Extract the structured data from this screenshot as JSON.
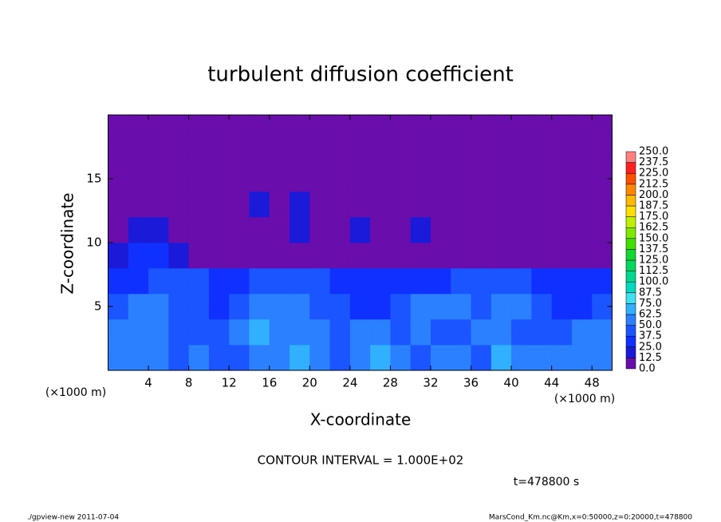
{
  "chart_data": {
    "type": "heatmap",
    "title": "turbulent diffusion coefficient",
    "xlabel": "X-coordinate",
    "ylabel": "Z-coordinate",
    "x_unit_label": "(×1000 m)",
    "y_unit_label": "(×1000 m)",
    "xlim": [
      0,
      50
    ],
    "ylim": [
      0,
      20
    ],
    "xticks": [
      4,
      8,
      12,
      16,
      20,
      24,
      28,
      32,
      36,
      40,
      44,
      48
    ],
    "yticks": [
      5,
      10,
      15
    ],
    "x": [
      1,
      3,
      5,
      7,
      9,
      11,
      13,
      15,
      17,
      19,
      21,
      23,
      25,
      27,
      29,
      31,
      33,
      35,
      37,
      39,
      41,
      43,
      45,
      47,
      49
    ],
    "z": [
      1,
      3,
      5,
      7,
      9,
      11,
      13,
      15,
      17,
      19
    ],
    "values": [
      [
        60,
        55,
        50,
        45,
        50,
        40,
        45,
        60,
        55,
        65,
        60,
        45,
        60,
        70,
        55,
        45,
        55,
        60,
        45,
        70,
        60,
        55,
        50,
        55,
        60
      ],
      [
        55,
        60,
        50,
        45,
        40,
        45,
        50,
        70,
        55,
        60,
        50,
        40,
        50,
        55,
        45,
        50,
        45,
        40,
        60,
        55,
        45,
        40,
        40,
        50,
        55
      ],
      [
        45,
        50,
        55,
        45,
        40,
        35,
        40,
        50,
        60,
        50,
        45,
        40,
        35,
        30,
        40,
        55,
        60,
        50,
        45,
        55,
        60,
        40,
        35,
        35,
        40
      ],
      [
        30,
        35,
        40,
        40,
        40,
        30,
        35,
        40,
        45,
        40,
        40,
        35,
        35,
        30,
        30,
        35,
        35,
        40,
        40,
        45,
        40,
        30,
        25,
        25,
        30
      ],
      [
        15,
        25,
        30,
        15,
        10,
        10,
        5,
        5,
        5,
        10,
        5,
        5,
        5,
        5,
        5,
        5,
        5,
        5,
        5,
        5,
        5,
        5,
        5,
        5,
        10
      ],
      [
        5,
        15,
        20,
        5,
        5,
        5,
        5,
        5,
        5,
        20,
        5,
        5,
        15,
        5,
        5,
        20,
        5,
        5,
        5,
        5,
        5,
        5,
        5,
        5,
        5
      ],
      [
        5,
        5,
        5,
        5,
        5,
        5,
        5,
        15,
        5,
        15,
        5,
        5,
        5,
        5,
        5,
        5,
        5,
        5,
        5,
        5,
        5,
        5,
        5,
        5,
        5
      ],
      [
        5,
        5,
        5,
        5,
        5,
        5,
        5,
        5,
        5,
        5,
        5,
        5,
        5,
        5,
        5,
        5,
        5,
        5,
        5,
        5,
        5,
        5,
        5,
        5,
        5
      ],
      [
        5,
        5,
        5,
        5,
        5,
        5,
        5,
        5,
        5,
        5,
        5,
        5,
        5,
        5,
        5,
        5,
        5,
        5,
        5,
        5,
        5,
        5,
        5,
        5,
        5
      ],
      [
        5,
        5,
        5,
        5,
        5,
        5,
        5,
        5,
        5,
        5,
        5,
        5,
        5,
        5,
        5,
        5,
        5,
        5,
        5,
        5,
        5,
        5,
        5,
        5,
        5
      ]
    ],
    "levels": [
      {
        "value": 0,
        "label": "0.0"
      },
      {
        "value": 12.5,
        "label": "12.5"
      },
      {
        "value": 25,
        "label": "25.0"
      },
      {
        "value": 37.5,
        "label": "37.5"
      },
      {
        "value": 50,
        "label": "50.0"
      },
      {
        "value": 62.5,
        "label": "62.5"
      },
      {
        "value": 75,
        "label": "75.0"
      },
      {
        "value": 87.5,
        "label": "87.5"
      },
      {
        "value": 100,
        "label": "100.0"
      },
      {
        "value": 112.5,
        "label": "112.5"
      },
      {
        "value": 125,
        "label": "125.0"
      },
      {
        "value": 137.5,
        "label": "137.5"
      },
      {
        "value": 150,
        "label": "150.0"
      },
      {
        "value": 162.5,
        "label": "162.5"
      },
      {
        "value": 175,
        "label": "175.0"
      },
      {
        "value": 187.5,
        "label": "187.5"
      },
      {
        "value": 200,
        "label": "200.0"
      },
      {
        "value": 212.5,
        "label": "212.5"
      },
      {
        "value": 225,
        "label": "225.0"
      },
      {
        "value": 237.5,
        "label": "237.5"
      },
      {
        "value": 250,
        "label": "250.0"
      }
    ],
    "colors": [
      "#6a0dad",
      "#1a1ad8",
      "#1030ff",
      "#1a55ff",
      "#2a80ff",
      "#30b0ff",
      "#40e0f0",
      "#00d8c0",
      "#00d890",
      "#00d860",
      "#10d830",
      "#40e000",
      "#80e800",
      "#c0ee00",
      "#ffe000",
      "#ffb800",
      "#ff8800",
      "#ff5000",
      "#ff2020",
      "#ff8080"
    ],
    "annotation": "CONTOUR INTERVAL = 1.000E+02",
    "time_label": "t=478800 s",
    "footer_left": "./gpview-new  2011-07-04",
    "footer_right": "MarsCond_Km.nc@Km,x=0:50000,z=0:20000,t=478800"
  }
}
